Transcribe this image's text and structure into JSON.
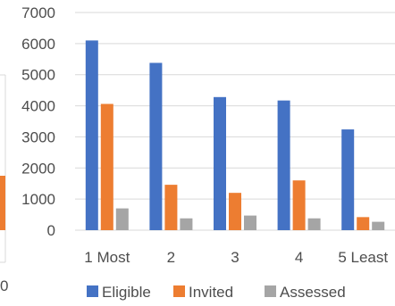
{
  "chart_data": {
    "type": "bar",
    "title": "",
    "xlabel": "",
    "ylabel": "",
    "ylim": [
      0,
      7000
    ],
    "yticks": [
      0,
      1000,
      2000,
      3000,
      4000,
      5000,
      6000,
      7000
    ],
    "grid": true,
    "legend": "bottom",
    "categories": [
      "1 Most",
      "2",
      "3",
      "4",
      "5 Least"
    ],
    "series": [
      {
        "name": "Eligible",
        "color": "#4472C4",
        "values": [
          6100,
          5380,
          4280,
          4170,
          3240
        ]
      },
      {
        "name": "Invited",
        "color": "#ED7D31",
        "values": [
          4060,
          1460,
          1200,
          1600,
          420
        ]
      },
      {
        "name": "Assessed",
        "color": "#A5A5A5",
        "values": [
          700,
          380,
          470,
          380,
          270
        ]
      }
    ]
  },
  "partial_left_chart": {
    "visible_axis_label": "0",
    "visible_bar_color": "#ED7D31"
  }
}
